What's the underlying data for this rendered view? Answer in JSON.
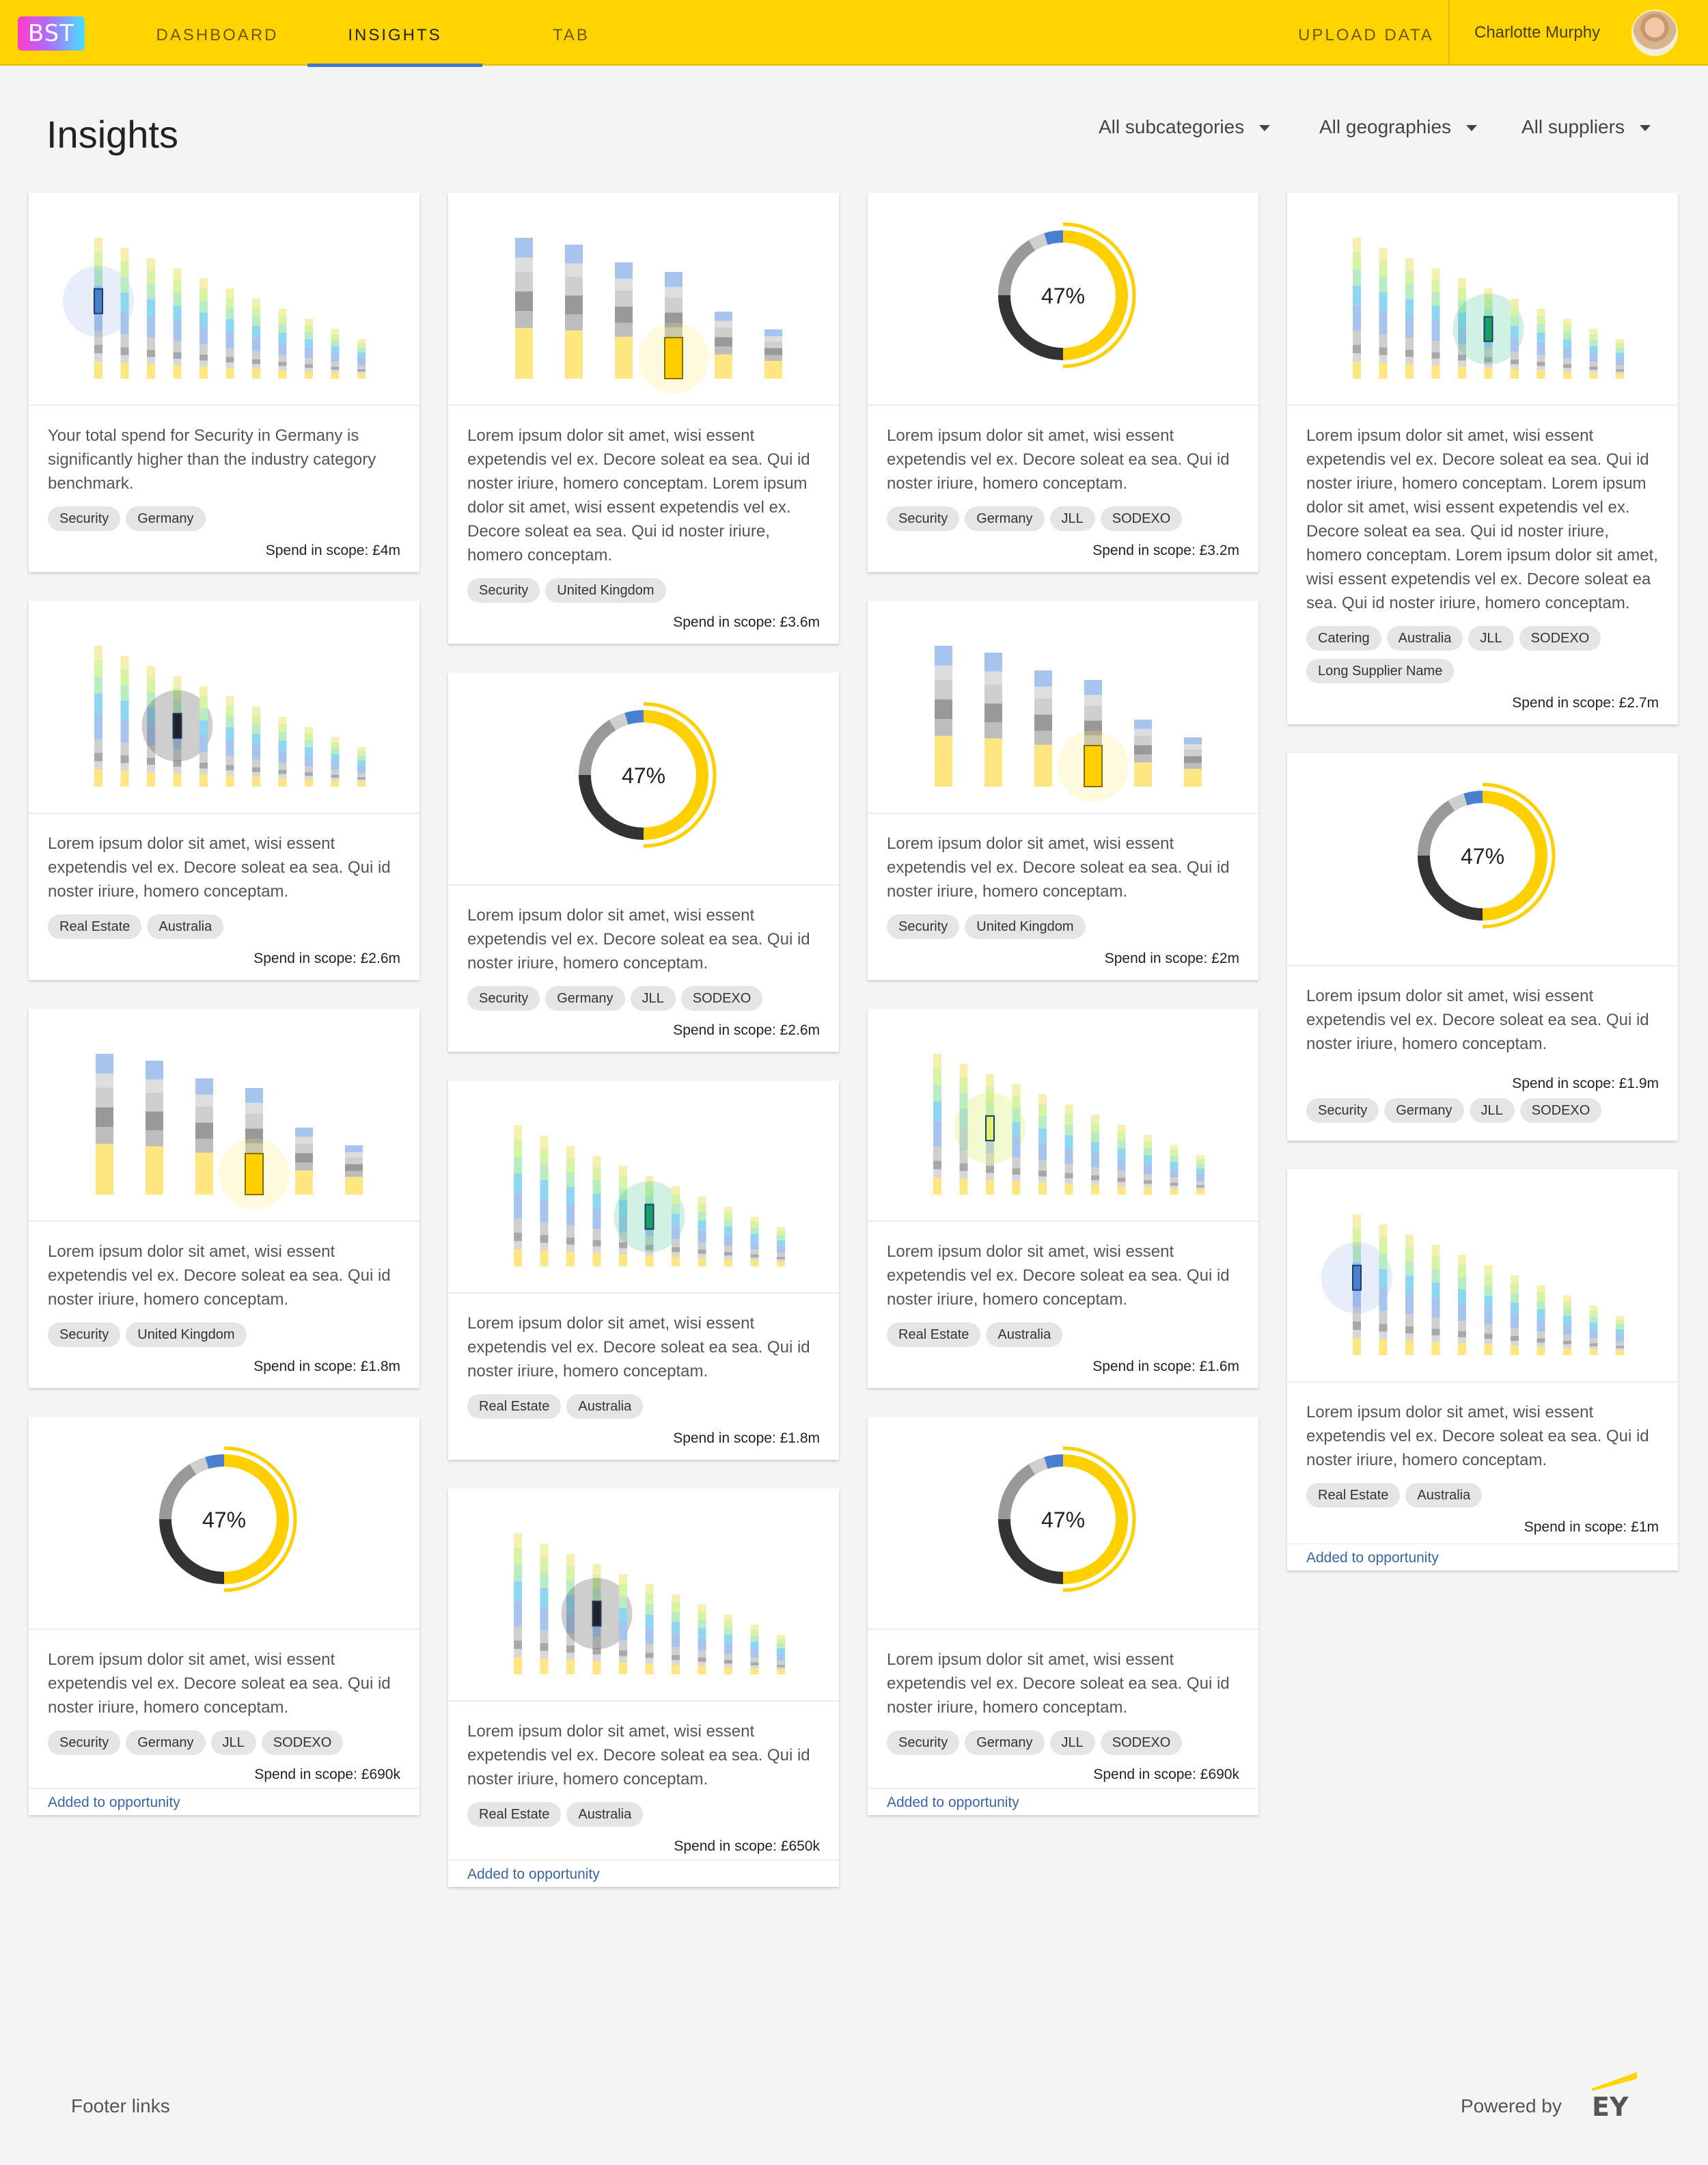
{
  "header": {
    "logo": "BST",
    "tabs": [
      {
        "label": "DASHBOARD",
        "active": false
      },
      {
        "label": "INSIGHTS",
        "active": true
      },
      {
        "label": "TAB",
        "active": false
      }
    ],
    "upload": "UPLOAD DATA",
    "user": "Charlotte Murphy",
    "accent": "#ffd400"
  },
  "page": {
    "title": "Insights",
    "filters": [
      "All subcategories",
      "All geographies",
      "All suppliers"
    ]
  },
  "cards": [
    {
      "col": 0,
      "chart": "bars",
      "highlight": "blue",
      "desc": "Your total spend for Security in Germany is significantly higher than the industry category benchmark.",
      "tags": [
        "Security",
        "Germany"
      ],
      "spend": "Spend in scope: £4m",
      "added": ""
    },
    {
      "col": 0,
      "chart": "bars",
      "highlight": "black",
      "desc": "Lorem ipsum dolor sit amet, wisi essent expetendis vel ex. Decore soleat ea sea. Qui id noster iriure, homero conceptam.",
      "tags": [
        "Real Estate",
        "Australia"
      ],
      "spend": "Spend in scope: £2.6m",
      "added": ""
    },
    {
      "col": 0,
      "chart": "stack",
      "highlight": "yellow",
      "desc": "Lorem ipsum dolor sit amet, wisi essent expetendis vel ex. Decore soleat ea sea. Qui id noster iriure, homero conceptam.",
      "tags": [
        "Security",
        "United Kingdom"
      ],
      "spend": "Spend in scope: £1.8m",
      "added": ""
    },
    {
      "col": 0,
      "chart": "donut",
      "donut_label": "47%",
      "desc": "Lorem ipsum dolor sit amet, wisi essent expetendis vel ex. Decore soleat ea sea. Qui id noster iriure, homero conceptam.",
      "tags": [
        "Security",
        "Germany",
        "JLL",
        "SODEXO"
      ],
      "spend": "Spend in scope: £690k",
      "truncated": true,
      "added": "Added to opportunity"
    },
    {
      "col": 1,
      "chart": "stack",
      "highlight": "yellow",
      "desc": "Lorem ipsum dolor sit amet, wisi essent expetendis vel ex. Decore soleat ea sea. Qui id noster iriure, homero conceptam. Lorem ipsum dolor sit amet, wisi essent expetendis vel ex. Decore soleat ea sea. Qui id noster iriure, homero conceptam.",
      "tags": [
        "Security",
        "United Kingdom"
      ],
      "spend": "Spend in scope: £3.6m",
      "added": ""
    },
    {
      "col": 1,
      "chart": "donut",
      "donut_label": "47%",
      "desc": "Lorem ipsum dolor sit amet, wisi essent expetendis vel ex. Decore soleat ea sea. Qui id noster iriure, homero conceptam.",
      "tags": [
        "Security",
        "Germany",
        "JLL",
        "SODEXO"
      ],
      "spend": "Spend in scope: £2.6m",
      "added": ""
    },
    {
      "col": 1,
      "chart": "bars",
      "highlight": "green",
      "desc": "Lorem ipsum dolor sit amet, wisi essent expetendis vel ex. Decore soleat ea sea. Qui id noster iriure, homero conceptam.",
      "tags": [
        "Real Estate",
        "Australia"
      ],
      "spend": "Spend in scope: £1.8m",
      "added": ""
    },
    {
      "col": 1,
      "chart": "bars",
      "highlight": "black",
      "desc": "Lorem ipsum dolor sit amet, wisi essent expetendis vel ex. Decore soleat ea sea. Qui id noster iriure, homero conceptam.",
      "tags": [
        "Real Estate",
        "Australia"
      ],
      "spend": "Spend in scope: £650k",
      "truncated": true,
      "added": "Added to opportunity"
    },
    {
      "col": 2,
      "chart": "donut",
      "donut_label": "47%",
      "desc": "Lorem ipsum dolor sit amet, wisi essent expetendis vel ex. Decore soleat ea sea. Qui id noster iriure, homero conceptam.",
      "tags": [
        "Security",
        "Germany",
        "JLL",
        "SODEXO"
      ],
      "spend": "Spend in scope: £3.2m",
      "added": ""
    },
    {
      "col": 2,
      "chart": "stack",
      "highlight": "yellow",
      "desc": "Lorem ipsum dolor sit amet, wisi essent expetendis vel ex. Decore soleat ea sea. Qui id noster iriure, homero conceptam.",
      "tags": [
        "Security",
        "United Kingdom"
      ],
      "spend": "Spend in scope: £2m",
      "added": ""
    },
    {
      "col": 2,
      "chart": "bars",
      "highlight": "lime",
      "desc": "Lorem ipsum dolor sit amet, wisi essent expetendis vel ex. Decore soleat ea sea. Qui id noster iriure, homero conceptam.",
      "tags": [
        "Real Estate",
        "Australia"
      ],
      "spend": "Spend in scope: £1.6m",
      "added": ""
    },
    {
      "col": 2,
      "chart": "donut",
      "donut_label": "47%",
      "desc": "Lorem ipsum dolor sit amet, wisi essent expetendis vel ex. Decore soleat ea sea. Qui id noster iriure, homero conceptam.",
      "tags": [
        "Security",
        "Germany",
        "JLL",
        "SODEXO"
      ],
      "spend": "Spend in scope: £690k",
      "truncated": true,
      "added": "Added to opportunity"
    },
    {
      "col": 3,
      "chart": "bars",
      "highlight": "green",
      "desc": "Lorem ipsum dolor sit amet, wisi essent expetendis vel ex. Decore soleat ea sea. Qui id noster iriure, homero conceptam. Lorem ipsum dolor sit amet, wisi essent expetendis vel ex. Decore soleat ea sea. Qui id noster iriure, homero conceptam. Lorem ipsum dolor sit amet, wisi essent expetendis vel ex. Decore soleat ea sea. Qui id noster iriure, homero conceptam.",
      "tags": [
        "Catering",
        "Australia",
        "JLL",
        "SODEXO",
        "Long Supplier Name"
      ],
      "spend": "Spend in scope: £2.7m",
      "added": ""
    },
    {
      "col": 3,
      "chart": "donut",
      "donut_label": "47%",
      "desc": "Lorem ipsum dolor sit amet, wisi essent expetendis vel ex. Decore soleat ea sea. Qui id noster iriure, homero conceptam.",
      "tags": [
        "Security",
        "Germany",
        "JLL",
        "SODEXO"
      ],
      "spend": "Spend in scope: £1.9m",
      "spend_before_tags": true,
      "added": ""
    },
    {
      "col": 3,
      "chart": "bars",
      "highlight": "blue",
      "desc": "Lorem ipsum dolor sit amet, wisi essent expetendis vel ex. Decore soleat ea sea. Qui id noster iriure, homero conceptam.",
      "tags": [
        "Real Estate",
        "Australia"
      ],
      "spend": "Spend in scope: £1m",
      "added": "Added to opportunity"
    }
  ],
  "footer": {
    "links": "Footer links",
    "powered": "Powered by",
    "brand": "EY"
  }
}
